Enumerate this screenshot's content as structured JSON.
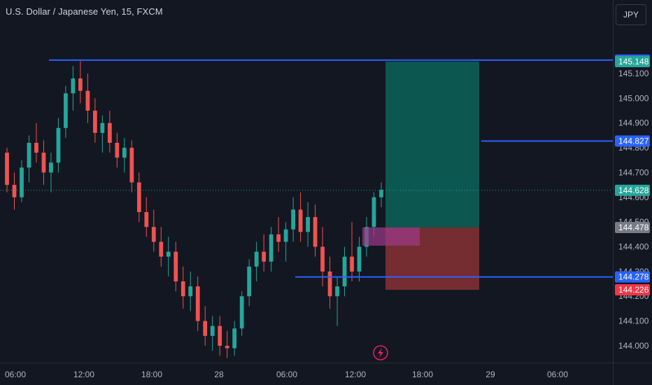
{
  "header": {
    "title": "U.S. Dollar / Japanese Yen, 15, FXCM",
    "currency_button": "JPY"
  },
  "colors": {
    "background": "#131722",
    "up": "#26a69a",
    "down": "#ef5350",
    "line": "#2962ff",
    "target_zone": "#0c5c54",
    "stop_zone": "#7a2e33",
    "entry_box": "#9c3a8a",
    "last_price": "#26a69a",
    "current_line": "#26a69a"
  },
  "chart_data": {
    "type": "candlestick",
    "ylim": [
      143.95,
      145.25
    ],
    "y_ticks": [
      "145.100",
      "145.000",
      "144.900",
      "144.800",
      "144.700",
      "144.600",
      "144.500",
      "144.400",
      "144.300",
      "144.200",
      "144.100",
      "144.000"
    ],
    "x_ticks": [
      "06:00",
      "12:00",
      "18:00",
      "28",
      "06:00",
      "12:00",
      "18:00",
      "29",
      "06:00"
    ],
    "horizontal_lines": [
      {
        "price": 145.154,
        "label": "145.154"
      },
      {
        "price": 144.827,
        "label": "144.827"
      },
      {
        "price": 144.278,
        "label": "144.278"
      }
    ],
    "price_badges": [
      {
        "price": 145.154,
        "label": "145.154",
        "color": "#2962ff"
      },
      {
        "price": 145.148,
        "label": "145.148",
        "color": "#26a69a"
      },
      {
        "price": 144.827,
        "label": "144.827",
        "color": "#2962ff"
      },
      {
        "price": 144.628,
        "label": "144.628",
        "color": "#26a69a"
      },
      {
        "price": 144.478,
        "label": "144.478",
        "color": "#787b86"
      },
      {
        "price": 144.278,
        "label": "144.278",
        "color": "#2962ff"
      },
      {
        "price": 144.226,
        "label": "144.226",
        "color": "#f23645"
      }
    ],
    "position": {
      "entry": 144.478,
      "target": 145.148,
      "stop": 144.226
    },
    "current_price": 144.628,
    "candles": [
      [
        144.78,
        144.8,
        144.62,
        144.65
      ],
      [
        144.65,
        144.7,
        144.55,
        144.6
      ],
      [
        144.6,
        144.75,
        144.58,
        144.72
      ],
      [
        144.72,
        144.85,
        144.66,
        144.82
      ],
      [
        144.82,
        144.9,
        144.74,
        144.78
      ],
      [
        144.78,
        144.83,
        144.65,
        144.7
      ],
      [
        144.7,
        144.78,
        144.62,
        144.74
      ],
      [
        144.74,
        144.92,
        144.7,
        144.88
      ],
      [
        144.88,
        145.05,
        144.84,
        145.02
      ],
      [
        145.02,
        145.13,
        144.95,
        145.08
      ],
      [
        145.08,
        145.15,
        144.98,
        145.03
      ],
      [
        145.03,
        145.1,
        144.9,
        144.95
      ],
      [
        144.95,
        145.0,
        144.82,
        144.86
      ],
      [
        144.86,
        144.93,
        144.78,
        144.9
      ],
      [
        144.9,
        144.95,
        144.78,
        144.82
      ],
      [
        144.82,
        144.86,
        144.72,
        144.76
      ],
      [
        144.76,
        144.84,
        144.7,
        144.8
      ],
      [
        144.8,
        144.83,
        144.62,
        144.66
      ],
      [
        144.66,
        144.7,
        144.5,
        144.54
      ],
      [
        144.54,
        144.6,
        144.44,
        144.48
      ],
      [
        144.48,
        144.55,
        144.38,
        144.42
      ],
      [
        144.42,
        144.48,
        144.32,
        144.36
      ],
      [
        144.36,
        144.44,
        144.28,
        144.38
      ],
      [
        144.38,
        144.42,
        144.22,
        144.26
      ],
      [
        144.26,
        144.32,
        144.15,
        144.2
      ],
      [
        144.2,
        144.3,
        144.14,
        144.24
      ],
      [
        144.24,
        144.28,
        144.06,
        144.1
      ],
      [
        144.1,
        144.16,
        144.0,
        144.04
      ],
      [
        144.04,
        144.12,
        143.98,
        144.08
      ],
      [
        144.08,
        144.12,
        143.96,
        144.0
      ],
      [
        144.0,
        144.06,
        143.95,
        143.99
      ],
      [
        143.99,
        144.1,
        143.96,
        144.07
      ],
      [
        144.07,
        144.22,
        144.04,
        144.2
      ],
      [
        144.2,
        144.35,
        144.16,
        144.32
      ],
      [
        144.32,
        144.42,
        144.26,
        144.38
      ],
      [
        144.38,
        144.45,
        144.3,
        144.34
      ],
      [
        144.34,
        144.48,
        144.3,
        144.45
      ],
      [
        144.45,
        144.52,
        144.38,
        144.42
      ],
      [
        144.42,
        144.5,
        144.34,
        144.47
      ],
      [
        144.47,
        144.6,
        144.42,
        144.55
      ],
      [
        144.55,
        144.62,
        144.42,
        144.46
      ],
      [
        144.46,
        144.58,
        144.4,
        144.52
      ],
      [
        144.52,
        144.57,
        144.36,
        144.4
      ],
      [
        144.4,
        144.48,
        144.24,
        144.3
      ],
      [
        144.3,
        144.36,
        144.15,
        144.2
      ],
      [
        144.2,
        144.28,
        144.08,
        144.24
      ],
      [
        144.24,
        144.4,
        144.2,
        144.36
      ],
      [
        144.36,
        144.5,
        144.26,
        144.3
      ],
      [
        144.3,
        144.44,
        144.26,
        144.4
      ],
      [
        144.4,
        144.52,
        144.36,
        144.48
      ],
      [
        144.48,
        144.62,
        144.44,
        144.6
      ],
      [
        144.6,
        144.66,
        144.56,
        144.63
      ]
    ]
  }
}
